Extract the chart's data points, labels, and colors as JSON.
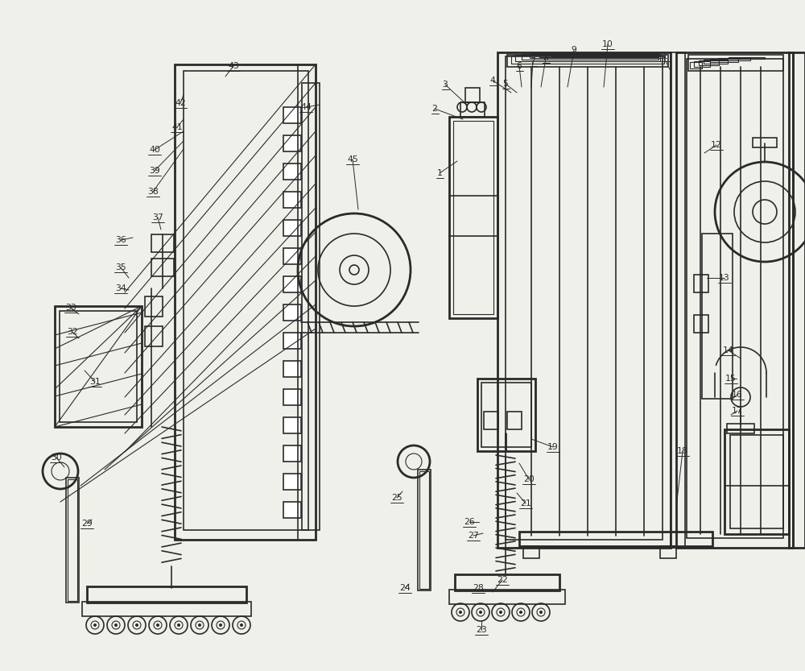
{
  "bg_color": "#f0f0ea",
  "line_color": "#2a2a2a",
  "lw": 1.2,
  "lw_thick": 2.0,
  "lw_thin": 0.8
}
